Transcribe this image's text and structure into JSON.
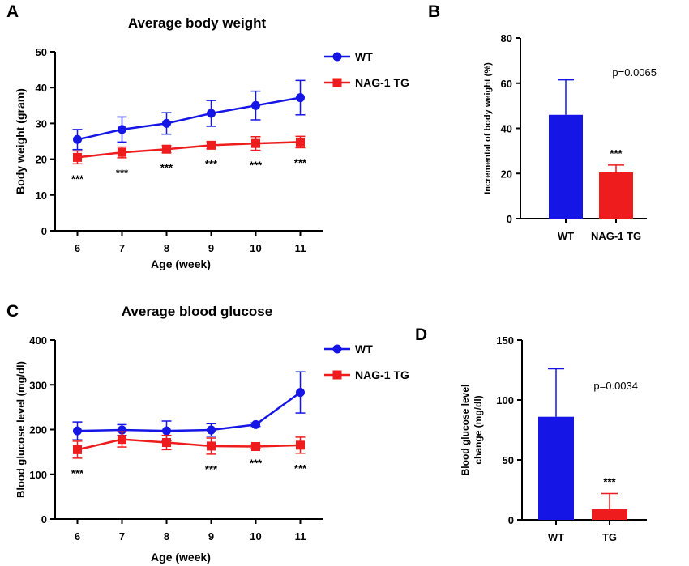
{
  "figure": {
    "panel_labels": [
      "A",
      "B",
      "C",
      "D"
    ]
  },
  "colors": {
    "wt": "#1515e6",
    "tg": "#ee1c1c",
    "axis": "#000000"
  },
  "chart_data": [
    {
      "panel": "A",
      "type": "line",
      "title": "Average body weight",
      "xlabel": "Age (week)",
      "ylabel": "Body weight (gram)",
      "x": [
        6,
        7,
        8,
        9,
        10,
        11
      ],
      "ylim": [
        0,
        50
      ],
      "yticks": [
        0,
        10,
        20,
        30,
        40,
        50
      ],
      "legend_position": "top-right",
      "series": [
        {
          "name": "WT",
          "color": "#1515e6",
          "marker": "circle",
          "values": [
            25.5,
            28.3,
            30,
            32.8,
            35,
            37.2
          ],
          "errors": [
            2.8,
            3.5,
            3.0,
            3.6,
            4.0,
            4.8
          ]
        },
        {
          "name": "NAG-1 TG",
          "color": "#ee1c1c",
          "marker": "square",
          "values": [
            20.5,
            21.9,
            22.8,
            23.9,
            24.4,
            24.8
          ],
          "errors": [
            1.8,
            1.5,
            1.0,
            1.0,
            1.9,
            1.6
          ]
        }
      ],
      "annotations": [
        {
          "x": 6,
          "text": "***"
        },
        {
          "x": 7,
          "text": "***"
        },
        {
          "x": 8,
          "text": "***"
        },
        {
          "x": 9,
          "text": "***"
        },
        {
          "x": 10,
          "text": "***"
        },
        {
          "x": 11,
          "text": "***"
        }
      ]
    },
    {
      "panel": "B",
      "type": "bar",
      "ylabel": "Incremental of body weight (%)",
      "categories": [
        "WT",
        "NAG-1 TG"
      ],
      "colors": [
        "#1515e6",
        "#ee1c1c"
      ],
      "values": [
        46,
        20.5
      ],
      "errors": [
        15.5,
        3.2
      ],
      "ylim": [
        0,
        80
      ],
      "yticks": [
        0,
        20,
        40,
        60,
        80
      ],
      "annotations": [
        {
          "category": "NAG-1 TG",
          "text": "***"
        }
      ],
      "pvalue": "p=0.0065"
    },
    {
      "panel": "C",
      "type": "line",
      "title": "Average blood glucose",
      "xlabel": "Age (week)",
      "ylabel": "Blood glucose level (mg/dl)",
      "x": [
        6,
        7,
        8,
        9,
        10,
        11
      ],
      "ylim": [
        0,
        400
      ],
      "yticks": [
        0,
        100,
        200,
        300,
        400
      ],
      "legend_position": "top-right",
      "series": [
        {
          "name": "WT",
          "color": "#1515e6",
          "marker": "circle",
          "values": [
            197,
            199,
            197,
            199,
            211,
            283
          ],
          "errors": [
            20,
            12,
            22,
            14,
            4,
            46
          ]
        },
        {
          "name": "NAG-1 TG",
          "color": "#ee1c1c",
          "marker": "square",
          "values": [
            155,
            178,
            171,
            163,
            162,
            165
          ],
          "errors": [
            19,
            17,
            16,
            18,
            4,
            18
          ]
        }
      ],
      "annotations": [
        {
          "x": 6,
          "text": "***"
        },
        {
          "x": 9,
          "text": "***"
        },
        {
          "x": 10,
          "text": "***"
        },
        {
          "x": 11,
          "text": "***"
        }
      ]
    },
    {
      "panel": "D",
      "type": "bar",
      "ylabel": [
        "Blood glucose level",
        "change (mg/dl)"
      ],
      "categories": [
        "WT",
        "TG"
      ],
      "colors": [
        "#1515e6",
        "#ee1c1c"
      ],
      "values": [
        86,
        9
      ],
      "errors": [
        40,
        13
      ],
      "ylim": [
        0,
        150
      ],
      "yticks": [
        0,
        50,
        100,
        150
      ],
      "annotations": [
        {
          "category": "TG",
          "text": "***"
        }
      ],
      "pvalue": "p=0.0034"
    }
  ]
}
